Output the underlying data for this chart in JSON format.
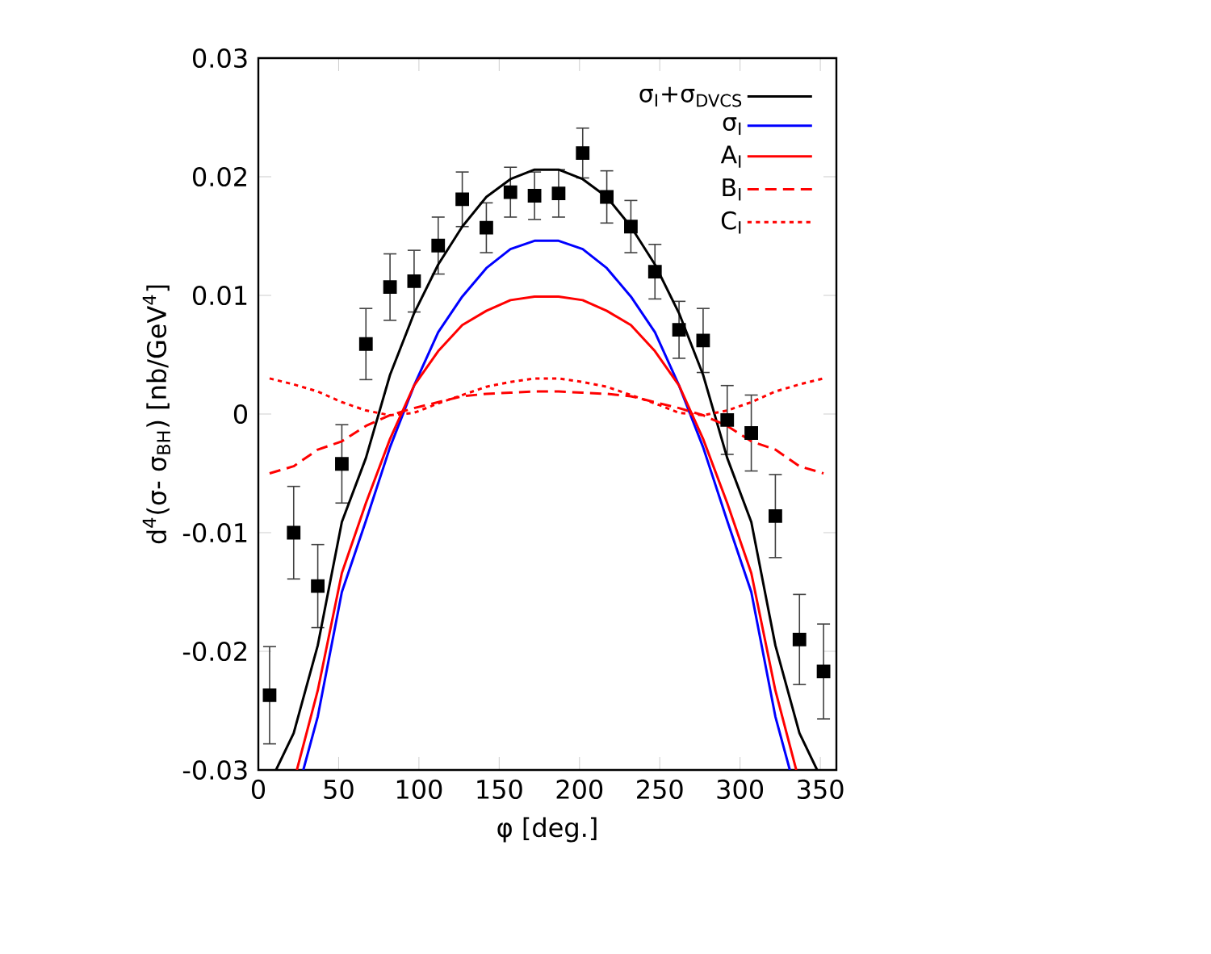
{
  "chart_data": {
    "type": "line",
    "xlabel": "φ [deg.]",
    "ylabel": "d$^{4}$(σ- σ$_{BH}$) [nb/GeV$^{4}$]",
    "xlim": [
      0,
      360
    ],
    "ylim": [
      -0.03,
      0.03
    ],
    "xticks": [
      0,
      50,
      100,
      150,
      200,
      250,
      300,
      350
    ],
    "yticks": [
      -0.03,
      -0.02,
      -0.01,
      0,
      0.01,
      0.02,
      0.03
    ],
    "grid": false,
    "legend": "top right",
    "series": [
      {
        "type": "scatter",
        "color": "#000000",
        "marker": "square",
        "x": [
          7,
          22,
          37,
          52,
          67,
          82,
          97,
          112,
          127,
          142,
          157,
          172,
          187,
          202,
          217,
          232,
          247,
          262,
          277,
          292,
          307,
          322,
          337,
          352
        ],
        "values": [
          -0.0237,
          -0.01,
          -0.0145,
          -0.0042,
          0.0059,
          0.0107,
          0.0112,
          0.0142,
          0.0181,
          0.0157,
          0.0187,
          0.0184,
          0.0186,
          0.022,
          0.0183,
          0.0158,
          0.012,
          0.0071,
          0.0062,
          -0.0005,
          -0.0016,
          -0.0086,
          -0.019,
          -0.0217
        ],
        "errors": [
          0.0041,
          0.0039,
          0.0035,
          0.0033,
          0.003,
          0.0028,
          0.0026,
          0.0024,
          0.0023,
          0.0021,
          0.0021,
          0.002,
          0.002,
          0.0021,
          0.0022,
          0.0022,
          0.0023,
          0.0024,
          0.0027,
          0.0029,
          0.0032,
          0.0035,
          0.0038,
          0.004
        ]
      },
      {
        "name": "σ$_{I}$+σ$_{DVCS}$",
        "color": "#000000",
        "line_style": "solid",
        "x": [
          11,
          22,
          37,
          52,
          67,
          82,
          97,
          112,
          127,
          142,
          157,
          172,
          187,
          202,
          217,
          232,
          247,
          262,
          277,
          292,
          307,
          322,
          337,
          348
        ],
        "values": [
          -0.03,
          -0.0269,
          -0.0195,
          -0.0091,
          -0.0037,
          0.0033,
          0.0085,
          0.0126,
          0.0158,
          0.0183,
          0.0198,
          0.0206,
          0.0206,
          0.0198,
          0.0183,
          0.0158,
          0.0126,
          0.0085,
          0.0033,
          -0.0037,
          -0.0091,
          -0.0195,
          -0.0269,
          -0.03
        ]
      },
      {
        "name": "σ$_{I}$",
        "color": "#0000ff",
        "line_style": "solid",
        "x": [
          28,
          37,
          52,
          67,
          82,
          97,
          112,
          127,
          142,
          157,
          172,
          187,
          202,
          217,
          232,
          247,
          262,
          277,
          292,
          307,
          322,
          331
        ],
        "values": [
          -0.03,
          -0.0255,
          -0.015,
          -0.009,
          -0.0028,
          0.0024,
          0.0069,
          0.0099,
          0.0123,
          0.0139,
          0.0146,
          0.0146,
          0.0139,
          0.0123,
          0.0099,
          0.0069,
          0.0024,
          -0.0028,
          -0.009,
          -0.015,
          -0.0255,
          -0.03
        ]
      },
      {
        "name": "A$_{I}$",
        "color": "#ff0000",
        "line_style": "solid",
        "x": [
          24,
          37,
          52,
          67,
          82,
          97,
          112,
          127,
          142,
          157,
          172,
          187,
          202,
          217,
          232,
          247,
          262,
          277,
          292,
          307,
          322,
          335
        ],
        "values": [
          -0.03,
          -0.0233,
          -0.0134,
          -0.0075,
          -0.0021,
          0.0024,
          0.0053,
          0.0075,
          0.0087,
          0.0096,
          0.0099,
          0.0099,
          0.0096,
          0.0087,
          0.0075,
          0.0053,
          0.0024,
          -0.0021,
          -0.0075,
          -0.0134,
          -0.0233,
          -0.03
        ]
      },
      {
        "name": "B$_{I}$",
        "color": "#ff0000",
        "line_style": "dashed",
        "x": [
          7,
          22,
          37,
          52,
          67,
          82,
          97,
          112,
          127,
          142,
          157,
          172,
          187,
          202,
          217,
          232,
          247,
          262,
          277,
          292,
          307,
          322,
          337,
          352
        ],
        "values": [
          -0.005,
          -0.0044,
          -0.003,
          -0.0023,
          -0.001,
          -0.0001,
          0.0005,
          0.001,
          0.0015,
          0.0017,
          0.0018,
          0.0019,
          0.0019,
          0.0018,
          0.0017,
          0.0015,
          0.001,
          0.0005,
          -0.0001,
          -0.001,
          -0.0023,
          -0.003,
          -0.0044,
          -0.005
        ]
      },
      {
        "name": "C$_{I}$",
        "color": "#ff0000",
        "line_style": "dotted",
        "x": [
          7,
          22,
          37,
          52,
          67,
          82,
          97,
          112,
          127,
          142,
          157,
          172,
          187,
          202,
          217,
          232,
          247,
          262,
          277,
          292,
          307,
          322,
          337,
          352
        ],
        "values": [
          0.003,
          0.0025,
          0.0019,
          0.001,
          0.0003,
          -0.0001,
          0.0001,
          0.0009,
          0.0016,
          0.0023,
          0.0027,
          0.003,
          0.003,
          0.0027,
          0.0023,
          0.0016,
          0.0009,
          0.0001,
          -0.0001,
          0.0003,
          0.001,
          0.0019,
          0.0025,
          0.003
        ]
      }
    ]
  }
}
